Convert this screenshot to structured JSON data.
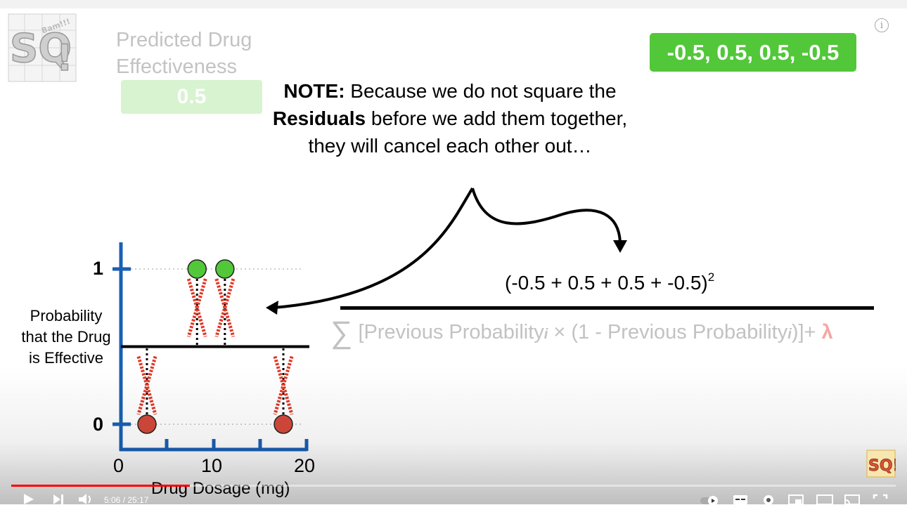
{
  "player": {
    "time_display": "5:06 / 25:17",
    "progress_fraction": 0.202,
    "progress_color": "#ff0000"
  },
  "logo": {
    "text": "SQ!",
    "burst": "Bam!!!"
  },
  "predicted": {
    "title": "Predicted Drug Effectiveness",
    "value": "0.5",
    "box_color": "#d7f3cf"
  },
  "residuals_badge": {
    "text": "-0.5, 0.5, 0.5, -0.5",
    "color": "#52c73a"
  },
  "note": {
    "bold_lead": "NOTE:",
    "text_1": " Because we do not square the ",
    "bold_term": "Residuals",
    "text_2": " before we add them together, they will cancel each other out…"
  },
  "formula": {
    "numerator": "(-0.5 + 0.5 + 0.5 + -0.5)",
    "exponent": "2",
    "denominator_sum": "∑",
    "denominator_text_1": "[Previous Probability",
    "sub_i": "i",
    "denominator_text_2": " × (1 - Previous Probability",
    "denominator_text_3": ")]+ ",
    "lambda": "λ"
  },
  "chart_data": {
    "type": "scatter",
    "ylabel": "Probability that the Drug is Effective",
    "xlabel": "Drug Dosage (mg)",
    "xlim": [
      0,
      20
    ],
    "ylim": [
      0,
      1
    ],
    "x_ticks": [
      0,
      10,
      20
    ],
    "y_ticks": [
      0,
      1
    ],
    "prediction_line": 0.5,
    "points": [
      {
        "x": 2.8,
        "y": 0,
        "color": "#d4493b"
      },
      {
        "x": 8.2,
        "y": 1,
        "color": "#52c73a"
      },
      {
        "x": 11.2,
        "y": 1,
        "color": "#52c73a"
      },
      {
        "x": 17.5,
        "y": 0,
        "color": "#d4493b"
      }
    ],
    "residual_marker_color": "#e03826"
  },
  "controls": {
    "play_icon": "play-icon",
    "next_icon": "next-icon",
    "volume_icon": "volume-icon",
    "autoplay_icon": "autoplay-toggle-icon",
    "subtitles_icon": "subtitles-icon",
    "settings_icon": "gear-icon",
    "miniplayer_icon": "miniplayer-icon",
    "theater_icon": "theater-icon",
    "cast_icon": "cast-icon",
    "fullscreen_icon": "fullscreen-icon",
    "info_icon": "info-icon"
  }
}
